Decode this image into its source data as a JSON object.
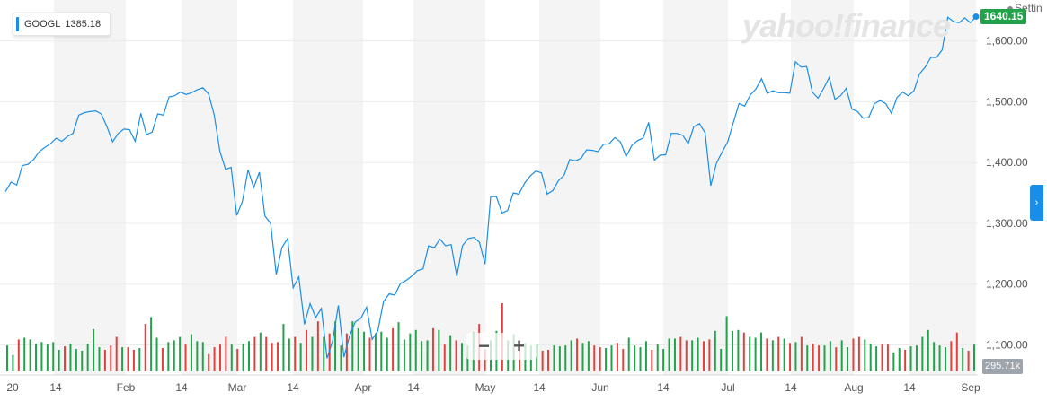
{
  "legend": {
    "ticker": "GOOGL",
    "value": "1385.18",
    "color": "#1a8ee6"
  },
  "watermark": "yahoo!finance",
  "last_price_label": "1640.15",
  "settings_label": "Settin",
  "volume_label": "295.71k",
  "zoom": {
    "minus": "−",
    "plus": "+"
  },
  "nav_tab_label": "›",
  "colors": {
    "price_line": "#1a8ee6",
    "volume_up": "#22a24a",
    "volume_down": "#e0413d",
    "band": "#f4f4f4",
    "last_price_bg": "#21a34a"
  },
  "chart_data": {
    "type": "line",
    "x_tick_labels": [
      "20",
      "14",
      "Feb",
      "14",
      "Mar",
      "14",
      "Apr",
      "14",
      "May",
      "14",
      "Jun",
      "14",
      "Jul",
      "14",
      "Aug",
      "14",
      "Sep"
    ],
    "y_tick_labels": [
      "1,100.00",
      "1,200.00",
      "1,300.00",
      "1,400.00",
      "1,500.00",
      "1,600.00"
    ],
    "ylim": [
      1055,
      1660
    ],
    "grid": true,
    "series": [
      {
        "name": "GOOGL",
        "values": [
          1352,
          1368,
          1363,
          1395,
          1397,
          1405,
          1418,
          1425,
          1431,
          1440,
          1435,
          1443,
          1448,
          1478,
          1482,
          1484,
          1485,
          1480,
          1459,
          1434,
          1448,
          1455,
          1454,
          1435,
          1481,
          1446,
          1450,
          1480,
          1478,
          1508,
          1510,
          1516,
          1512,
          1515,
          1520,
          1523,
          1513,
          1479,
          1419,
          1389,
          1392,
          1313,
          1336,
          1388,
          1359,
          1384,
          1312,
          1300,
          1216,
          1260,
          1275,
          1194,
          1212,
          1134,
          1168,
          1145,
          1160,
          1078,
          1107,
          1165,
          1080,
          1115,
          1138,
          1144,
          1162,
          1109,
          1123,
          1171,
          1184,
          1182,
          1201,
          1206,
          1213,
          1222,
          1225,
          1263,
          1260,
          1274,
          1263,
          1265,
          1213,
          1263,
          1275,
          1277,
          1269,
          1233,
          1344,
          1344,
          1317,
          1321,
          1350,
          1348,
          1366,
          1378,
          1386,
          1383,
          1348,
          1354,
          1370,
          1379,
          1405,
          1403,
          1407,
          1421,
          1420,
          1418,
          1430,
          1431,
          1441,
          1434,
          1410,
          1428,
          1436,
          1440,
          1466,
          1404,
          1412,
          1413,
          1448,
          1448,
          1445,
          1431,
          1459,
          1464,
          1449,
          1362,
          1399,
          1417,
          1434,
          1466,
          1497,
          1493,
          1511,
          1521,
          1538,
          1514,
          1518,
          1515,
          1515,
          1514,
          1566,
          1557,
          1558,
          1516,
          1506,
          1522,
          1540,
          1504,
          1510,
          1522,
          1488,
          1484,
          1473,
          1474,
          1497,
          1502,
          1497,
          1481,
          1507,
          1516,
          1510,
          1518,
          1546,
          1557,
          1573,
          1573,
          1585,
          1639,
          1632,
          1630,
          1638,
          1630,
          1640
        ]
      },
      {
        "name": "Volume",
        "values": [
          30,
          19,
          37,
          39,
          37,
          32,
          34,
          31,
          34,
          25,
          29,
          32,
          26,
          24,
          32,
          49,
          28,
          25,
          30,
          40,
          28,
          28,
          25,
          27,
          55,
          63,
          39,
          27,
          34,
          36,
          40,
          31,
          43,
          35,
          34,
          20,
          28,
          31,
          40,
          31,
          26,
          32,
          35,
          40,
          45,
          40,
          33,
          34,
          55,
          38,
          40,
          33,
          48,
          40,
          58,
          40,
          44,
          58,
          30,
          44,
          58,
          50,
          46,
          39,
          44,
          46,
          39,
          50,
          57,
          37,
          44,
          48,
          35,
          36,
          50,
          48,
          31,
          42,
          36,
          33,
          30,
          45,
          55,
          26,
          36,
          47,
          79,
          36,
          43,
          36,
          33,
          30,
          31,
          24,
          25,
          30,
          29,
          30,
          36,
          38,
          33,
          35,
          30,
          28,
          27,
          30,
          33,
          26,
          39,
          30,
          28,
          35,
          25,
          31,
          26,
          38,
          38,
          40,
          36,
          36,
          39,
          35,
          37,
          47,
          26,
          64,
          47,
          48,
          45,
          40,
          39,
          45,
          38,
          36,
          40,
          38,
          33,
          34,
          40,
          30,
          32,
          30,
          30,
          35,
          28,
          36,
          28,
          38,
          40,
          37,
          32,
          29,
          31,
          31,
          22,
          27,
          25,
          29,
          30,
          40,
          48,
          34,
          30,
          28,
          35,
          45,
          27,
          24,
          31
        ]
      }
    ]
  }
}
